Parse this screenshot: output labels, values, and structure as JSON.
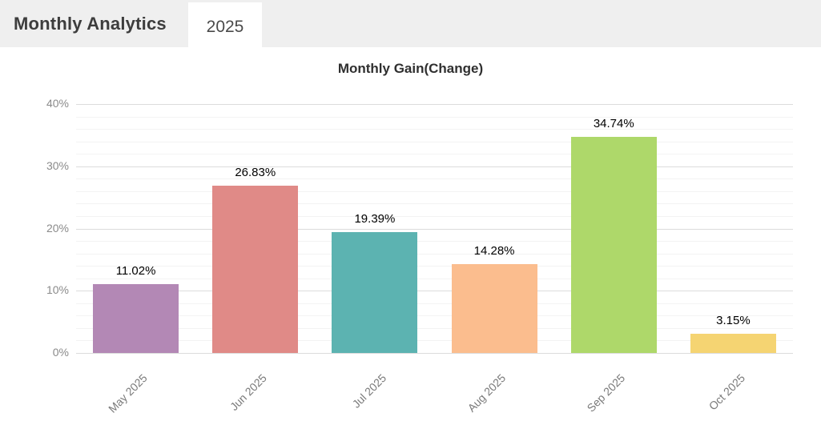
{
  "header": {
    "title": "Monthly Analytics",
    "tab_label": "2025"
  },
  "chart_data": {
    "type": "bar",
    "title": "Monthly Gain(Change)",
    "categories": [
      "May 2025",
      "Jun 2025",
      "Jul 2025",
      "Aug 2025",
      "Sep 2025",
      "Oct 2025"
    ],
    "values": [
      11.02,
      26.83,
      19.39,
      14.28,
      34.74,
      3.15
    ],
    "value_labels": [
      "11.02%",
      "26.83%",
      "19.39%",
      "14.28%",
      "34.74%",
      "3.15%"
    ],
    "bar_colors": [
      "#b388b5",
      "#e08a87",
      "#5cb3b1",
      "#fbbd8e",
      "#aed86a",
      "#f5d472"
    ],
    "xlabel": "",
    "ylabel": "",
    "ylim": [
      0,
      40
    ],
    "yticks": [
      0,
      10,
      20,
      30,
      40
    ],
    "ytick_labels": [
      "0%",
      "10%",
      "20%",
      "30%",
      "40%"
    ],
    "minor_grid_step": 2,
    "grid": true,
    "legend": false
  },
  "colors": {
    "header_bg": "#efefef",
    "tab_bg": "#ffffff",
    "grid_major": "#dcdcdc",
    "grid_minor": "#f3f3f3",
    "axis_text": "#8a8a8a",
    "value_text": "#000000",
    "title_text": "#2f2f2f"
  }
}
